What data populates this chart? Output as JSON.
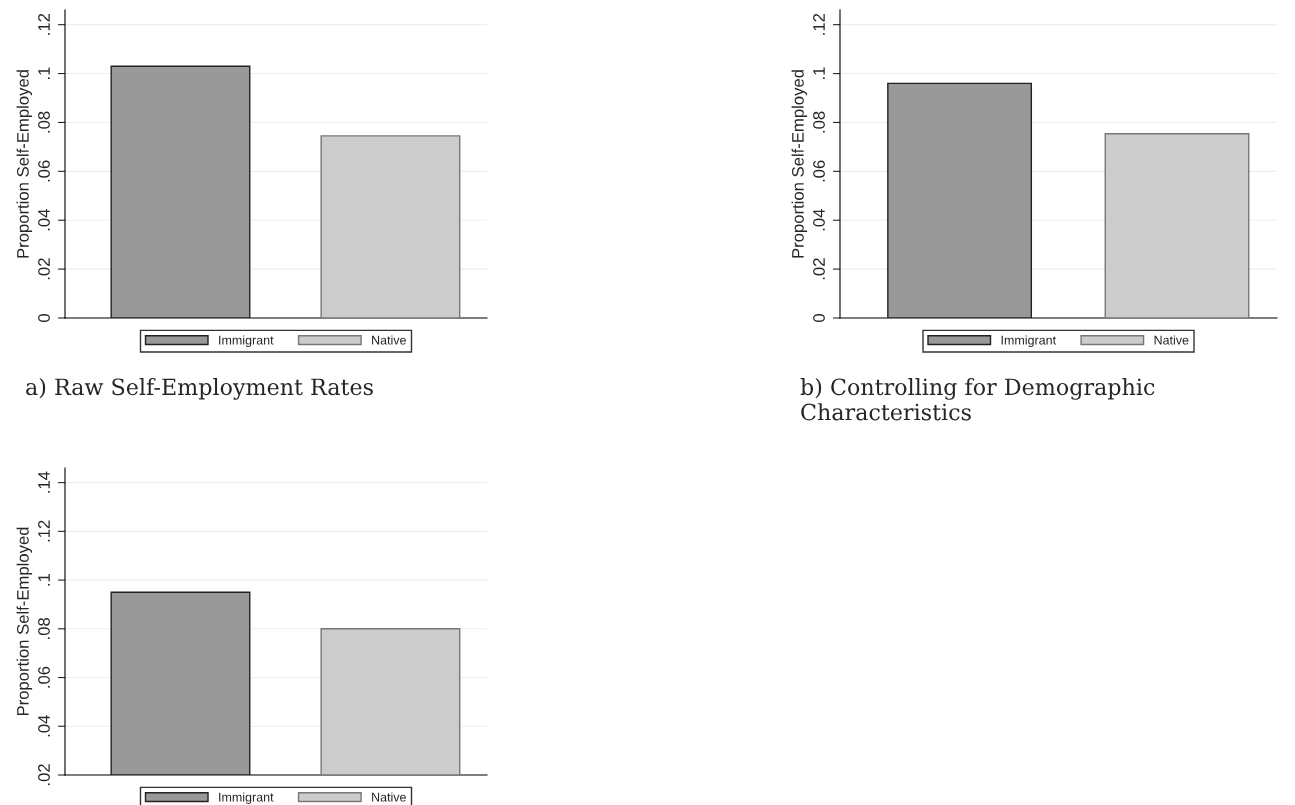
{
  "chart_data": [
    {
      "type": "bar",
      "categories": [
        null,
        null
      ],
      "ylabel": "Proportion Self-Employed",
      "ylim": [
        0,
        0.126
      ],
      "yticks": [
        {
          "value": 0,
          "label": "0"
        },
        {
          "value": 0.02,
          "label": ".02"
        },
        {
          "value": 0.04,
          "label": ".04"
        },
        {
          "value": 0.06,
          "label": ".06"
        },
        {
          "value": 0.08,
          "label": ".08"
        },
        {
          "value": 0.1,
          "label": ".1"
        },
        {
          "value": 0.12,
          "label": ".12"
        }
      ],
      "tick_labels": "y",
      "grid": "y",
      "legend": "bottom",
      "annotations": [
        "a) Raw Self-Employment Rates"
      ],
      "series": [
        {
          "name": "Immigrant",
          "color": "#999999",
          "values": [
            0.103,
            null
          ]
        },
        {
          "name": "Native",
          "color": "#cccccc",
          "values": [
            null,
            0.0745
          ]
        }
      ]
    },
    {
      "type": "bar",
      "categories": [
        null,
        null
      ],
      "ylabel": "Proportion Self-Employed",
      "ylim": [
        0,
        0.126
      ],
      "yticks": [
        {
          "value": 0,
          "label": "0"
        },
        {
          "value": 0.02,
          "label": ".02"
        },
        {
          "value": 0.04,
          "label": ".04"
        },
        {
          "value": 0.06,
          "label": ".06"
        },
        {
          "value": 0.08,
          "label": ".08"
        },
        {
          "value": 0.1,
          "label": ".1"
        },
        {
          "value": 0.12,
          "label": ".12"
        }
      ],
      "tick_labels": "y",
      "grid": "y",
      "legend": "bottom",
      "annotations": [
        "b) Controlling for Demographic Characteristics"
      ],
      "series": [
        {
          "name": "Immigrant",
          "color": "#999999",
          "values": [
            0.096,
            null
          ]
        },
        {
          "name": "Native",
          "color": "#cccccc",
          "values": [
            null,
            0.0754
          ]
        }
      ]
    },
    {
      "type": "bar",
      "categories": [
        null,
        null
      ],
      "ylabel": "Proportion Self-Employed",
      "ylim": [
        0.02,
        0.146
      ],
      "yticks": [
        {
          "value": 0.02,
          "label": ".02"
        },
        {
          "value": 0.04,
          "label": ".04"
        },
        {
          "value": 0.06,
          "label": ".06"
        },
        {
          "value": 0.08,
          "label": ".08"
        },
        {
          "value": 0.1,
          "label": ".1"
        },
        {
          "value": 0.12,
          "label": ".12"
        },
        {
          "value": 0.14,
          "label": ".14"
        }
      ],
      "tick_labels": "y",
      "grid": "y",
      "legend": "bottom",
      "series": [
        {
          "name": "Immigrant",
          "color": "#999999",
          "values": [
            0.095,
            null
          ]
        },
        {
          "name": "Native",
          "color": "#cccccc",
          "values": [
            null,
            0.08
          ]
        }
      ]
    }
  ]
}
